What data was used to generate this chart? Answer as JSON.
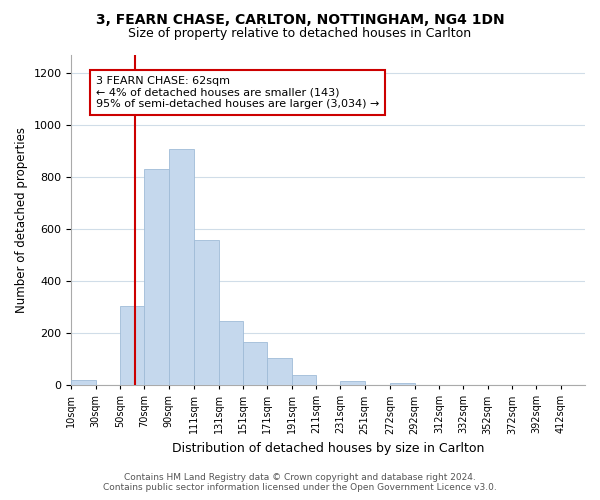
{
  "title": "3, FEARN CHASE, CARLTON, NOTTINGHAM, NG4 1DN",
  "subtitle": "Size of property relative to detached houses in Carlton",
  "xlabel": "Distribution of detached houses by size in Carlton",
  "ylabel": "Number of detached properties",
  "bar_labels": [
    "10sqm",
    "30sqm",
    "50sqm",
    "70sqm",
    "90sqm",
    "111sqm",
    "131sqm",
    "151sqm",
    "171sqm",
    "191sqm",
    "211sqm",
    "231sqm",
    "251sqm",
    "272sqm",
    "292sqm",
    "312sqm",
    "332sqm",
    "352sqm",
    "372sqm",
    "392sqm",
    "412sqm"
  ],
  "bar_heights": [
    20,
    0,
    305,
    830,
    910,
    560,
    245,
    165,
    103,
    38,
    0,
    15,
    0,
    10,
    0,
    0,
    0,
    0,
    0,
    0,
    0
  ],
  "bar_color": "#c5d8ed",
  "bar_edge_color": "#a0bcd8",
  "ylim": [
    0,
    1270
  ],
  "yticks": [
    0,
    200,
    400,
    600,
    800,
    1000,
    1200
  ],
  "property_line_x": 62,
  "property_line_color": "#cc0000",
  "annotation_line1": "3 FEARN CHASE: 62sqm",
  "annotation_line2": "← 4% of detached houses are smaller (143)",
  "annotation_line3": "95% of semi-detached houses are larger (3,034) →",
  "annotation_box_color": "#ffffff",
  "annotation_box_edge": "#cc0000",
  "footer_line1": "Contains HM Land Registry data © Crown copyright and database right 2024.",
  "footer_line2": "Contains public sector information licensed under the Open Government Licence v3.0.",
  "bg_color": "#ffffff",
  "grid_color": "#d0dde8",
  "bin_edges": [
    10,
    30,
    50,
    70,
    90,
    111,
    131,
    151,
    171,
    191,
    211,
    231,
    251,
    272,
    292,
    312,
    332,
    352,
    372,
    392,
    412
  ],
  "xlim_left": 10,
  "xlim_right": 432
}
